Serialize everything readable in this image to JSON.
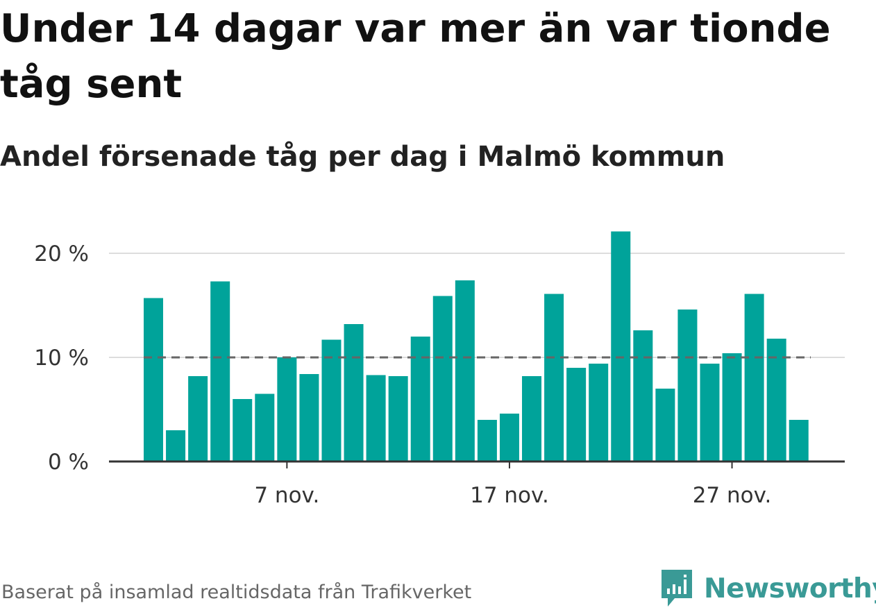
{
  "title": "Under 14 dagar var mer än var tionde tåg sent",
  "subtitle": "Andel försenade tåg per dag i Malmö kommun",
  "source": "Baserat på insamlad realtidsdata från Trafikverket",
  "brand": {
    "name": "Newsworthy",
    "icon": "newsworthy-logo-icon",
    "color": "#3a9a96"
  },
  "chart_data": {
    "type": "bar",
    "x": [
      "2023-11-01",
      "2023-11-02",
      "2023-11-03",
      "2023-11-04",
      "2023-11-05",
      "2023-11-06",
      "2023-11-07",
      "2023-11-08",
      "2023-11-09",
      "2023-11-10",
      "2023-11-11",
      "2023-11-12",
      "2023-11-13",
      "2023-11-14",
      "2023-11-15",
      "2023-11-16",
      "2023-11-17",
      "2023-11-18",
      "2023-11-19",
      "2023-11-20",
      "2023-11-21",
      "2023-11-22",
      "2023-11-23",
      "2023-11-24",
      "2023-11-25",
      "2023-11-26",
      "2023-11-27",
      "2023-11-28",
      "2023-11-29",
      "2023-11-30"
    ],
    "values": [
      15.7,
      3.0,
      8.2,
      17.3,
      6.0,
      6.5,
      10.0,
      8.4,
      11.7,
      13.2,
      8.3,
      8.2,
      12.0,
      15.9,
      17.4,
      4.0,
      4.6,
      8.2,
      16.1,
      9.0,
      9.4,
      22.1,
      12.6,
      7.0,
      14.6,
      9.4,
      10.4,
      16.1,
      11.8,
      4.0
    ],
    "reference_line": 10,
    "ylim": [
      0,
      22.2
    ],
    "yticks": [
      0,
      10,
      20
    ],
    "ytick_labels": [
      "0 %",
      "10 %",
      "20 %"
    ],
    "xticks": [
      "2023-11-07",
      "2023-11-17",
      "2023-11-27"
    ],
    "xtick_labels": [
      "7 nov.",
      "17 nov.",
      "27 nov."
    ],
    "grid": true,
    "bar_color": "#00a39a",
    "reference_line_color": "#666666",
    "gridline_color": "#dddddd",
    "axis_color": "#333333"
  }
}
